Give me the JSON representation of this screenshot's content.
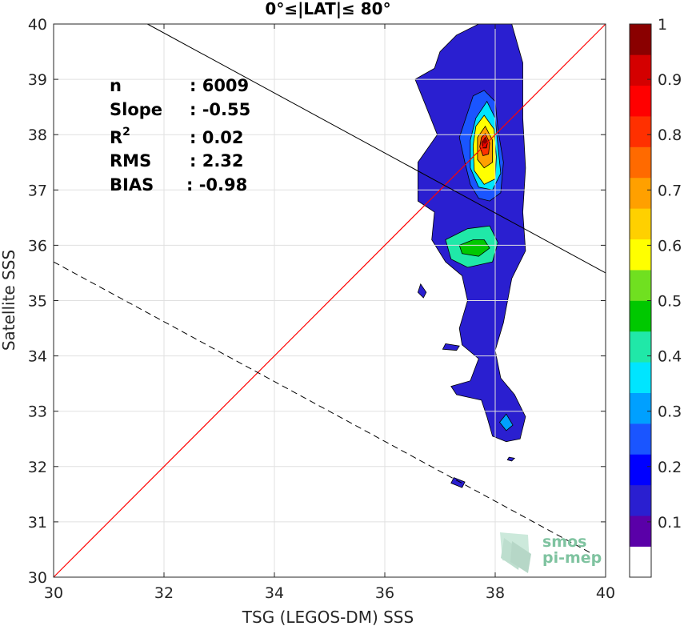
{
  "chart_data": {
    "type": "heatmap",
    "title": "0°≤|LAT|≤ 80°",
    "xlabel": "TSG (LEGOS-DM) SSS",
    "ylabel": "Satellite SSS",
    "xlim": [
      30,
      40
    ],
    "ylim": [
      30,
      40
    ],
    "xticks": [
      "30",
      "32",
      "34",
      "36",
      "38",
      "40"
    ],
    "yticks": [
      "30",
      "31",
      "32",
      "33",
      "34",
      "35",
      "36",
      "37",
      "38",
      "39",
      "40"
    ],
    "grid": true,
    "stats": [
      {
        "label": "n",
        "value": ": 6009"
      },
      {
        "label": "Slope",
        "value": ": -0.55"
      },
      {
        "label": "R",
        "label_sup": "2",
        "value": ": 0.02"
      },
      {
        "label": "RMS",
        "value": ": 2.32"
      },
      {
        "label": "BIAS",
        "value": ": -0.98"
      }
    ],
    "lines": {
      "identity": {
        "slope": 1,
        "intercept": 0,
        "color": "#ff0000",
        "style": "solid"
      },
      "fit": {
        "x": [
          31.7,
          40.0
        ],
        "y": [
          40.0,
          35.5
        ],
        "color": "#000000",
        "style": "solid"
      },
      "offset": {
        "x": [
          30.0,
          39.8
        ],
        "y": [
          35.7,
          30.4
        ],
        "color": "#000000",
        "style": "dashed"
      }
    },
    "density_peak": {
      "x": 37.82,
      "y": 37.88
    },
    "colorbar": {
      "range": [
        0,
        1
      ],
      "ticks": [
        "0.1",
        "0.2",
        "0.3",
        "0.4",
        "0.5",
        "0.6",
        "0.7",
        "0.8",
        "0.9",
        "1"
      ],
      "colors": [
        "#ffffff",
        "#5a00a8",
        "#2a1fd0",
        "#0000ff",
        "#1a55ff",
        "#00a0ff",
        "#00e5ff",
        "#20e8a8",
        "#00c800",
        "#70e020",
        "#ffff00",
        "#ffd000",
        "#ffa000",
        "#ff6a00",
        "#ff3000",
        "#ff0000",
        "#d40000",
        "#8a0000"
      ]
    },
    "contours": [
      {
        "level": 0.05,
        "color": "#2a1fd0",
        "points": [
          [
            37.3,
            39.8
          ],
          [
            37.7,
            40.0
          ],
          [
            38.3,
            40.0
          ],
          [
            38.5,
            39.3
          ],
          [
            38.5,
            38.3
          ],
          [
            38.55,
            37.4
          ],
          [
            38.5,
            36.6
          ],
          [
            38.55,
            35.9
          ],
          [
            38.3,
            35.4
          ],
          [
            38.15,
            34.6
          ],
          [
            38.0,
            34.1
          ],
          [
            38.1,
            33.6
          ],
          [
            38.35,
            33.3
          ],
          [
            38.55,
            32.9
          ],
          [
            38.45,
            32.5
          ],
          [
            38.2,
            32.45
          ],
          [
            37.95,
            32.55
          ],
          [
            37.85,
            32.9
          ],
          [
            37.75,
            33.2
          ],
          [
            37.3,
            33.3
          ],
          [
            37.2,
            33.45
          ],
          [
            37.55,
            33.55
          ],
          [
            37.7,
            33.95
          ],
          [
            37.4,
            34.2
          ],
          [
            37.35,
            34.5
          ],
          [
            37.5,
            35.0
          ],
          [
            37.4,
            35.45
          ],
          [
            37.1,
            35.7
          ],
          [
            36.85,
            36.1
          ],
          [
            36.9,
            36.6
          ],
          [
            36.6,
            36.8
          ],
          [
            36.6,
            37.5
          ],
          [
            36.95,
            38.0
          ],
          [
            36.75,
            38.5
          ],
          [
            36.55,
            39.0
          ],
          [
            36.9,
            39.2
          ],
          [
            37.0,
            39.5
          ],
          [
            37.3,
            39.8
          ]
        ]
      },
      {
        "level": 0.15,
        "color": "#1a55ff",
        "points": [
          [
            37.8,
            38.8
          ],
          [
            38.0,
            38.6
          ],
          [
            38.05,
            38.1
          ],
          [
            38.15,
            37.5
          ],
          [
            38.1,
            36.95
          ],
          [
            37.9,
            36.8
          ],
          [
            37.7,
            36.85
          ],
          [
            37.55,
            37.1
          ],
          [
            37.45,
            37.5
          ],
          [
            37.35,
            37.95
          ],
          [
            37.5,
            38.4
          ],
          [
            37.6,
            38.7
          ],
          [
            37.8,
            38.8
          ]
        ]
      },
      {
        "level": 0.25,
        "color": "#00e5ff",
        "points": [
          [
            37.85,
            38.6
          ],
          [
            38.0,
            38.3
          ],
          [
            38.05,
            37.8
          ],
          [
            38.1,
            37.3
          ],
          [
            37.95,
            37.0
          ],
          [
            37.7,
            37.05
          ],
          [
            37.55,
            37.4
          ],
          [
            37.55,
            37.9
          ],
          [
            37.65,
            38.3
          ],
          [
            37.85,
            38.6
          ]
        ]
      },
      {
        "level": 0.3,
        "color": "#20e8a8",
        "points": [
          [
            37.9,
            36.35
          ],
          [
            38.05,
            36.05
          ],
          [
            37.95,
            35.7
          ],
          [
            37.5,
            35.6
          ],
          [
            37.2,
            35.75
          ],
          [
            37.1,
            36.1
          ],
          [
            37.5,
            36.3
          ],
          [
            37.9,
            36.35
          ]
        ]
      },
      {
        "level": 0.35,
        "color": "#00c800",
        "points": [
          [
            37.8,
            36.1
          ],
          [
            37.9,
            35.95
          ],
          [
            37.7,
            35.8
          ],
          [
            37.4,
            35.85
          ],
          [
            37.35,
            36.0
          ],
          [
            37.6,
            36.1
          ],
          [
            37.8,
            36.1
          ]
        ]
      },
      {
        "level": 0.55,
        "color": "#ffff00",
        "points": [
          [
            37.8,
            38.35
          ],
          [
            37.98,
            38.1
          ],
          [
            38.02,
            37.6
          ],
          [
            38.0,
            37.2
          ],
          [
            37.8,
            37.1
          ],
          [
            37.62,
            37.35
          ],
          [
            37.6,
            37.8
          ],
          [
            37.65,
            38.15
          ],
          [
            37.8,
            38.35
          ]
        ]
      },
      {
        "level": 0.7,
        "color": "#ffa000",
        "points": [
          [
            37.82,
            38.15
          ],
          [
            37.95,
            37.9
          ],
          [
            37.95,
            37.5
          ],
          [
            37.8,
            37.4
          ],
          [
            37.68,
            37.55
          ],
          [
            37.68,
            37.95
          ],
          [
            37.82,
            38.15
          ]
        ]
      },
      {
        "level": 0.85,
        "color": "#ff3000",
        "points": [
          [
            37.82,
            38.02
          ],
          [
            37.9,
            37.85
          ],
          [
            37.88,
            37.65
          ],
          [
            37.78,
            37.62
          ],
          [
            37.72,
            37.78
          ],
          [
            37.75,
            37.95
          ],
          [
            37.82,
            38.02
          ]
        ]
      },
      {
        "level": 0.95,
        "color": "#d40000",
        "points": [
          [
            37.82,
            37.95
          ],
          [
            37.86,
            37.85
          ],
          [
            37.84,
            37.76
          ],
          [
            37.78,
            37.76
          ],
          [
            37.76,
            37.86
          ],
          [
            37.82,
            37.95
          ]
        ]
      },
      {
        "level": 0.05,
        "color": "#2a1fd0",
        "points": [
          [
            36.65,
            35.3
          ],
          [
            36.75,
            35.15
          ],
          [
            36.7,
            35.05
          ],
          [
            36.6,
            35.15
          ],
          [
            36.65,
            35.3
          ]
        ]
      },
      {
        "level": 0.05,
        "color": "#2a1fd0",
        "points": [
          [
            37.1,
            34.22
          ],
          [
            37.35,
            34.18
          ],
          [
            37.3,
            34.1
          ],
          [
            37.05,
            34.12
          ],
          [
            37.1,
            34.22
          ]
        ]
      },
      {
        "level": 0.05,
        "color": "#2a1fd0",
        "points": [
          [
            37.25,
            31.8
          ],
          [
            37.45,
            31.72
          ],
          [
            37.4,
            31.62
          ],
          [
            37.2,
            31.7
          ],
          [
            37.25,
            31.8
          ]
        ]
      },
      {
        "level": 0.05,
        "color": "#2a1fd0",
        "points": [
          [
            38.25,
            32.17
          ],
          [
            38.35,
            32.15
          ],
          [
            38.3,
            32.1
          ],
          [
            38.22,
            32.12
          ],
          [
            38.25,
            32.17
          ]
        ]
      },
      {
        "level": 0.2,
        "color": "#00a0ff",
        "points": [
          [
            38.2,
            32.95
          ],
          [
            38.32,
            32.75
          ],
          [
            38.2,
            32.65
          ],
          [
            38.08,
            32.8
          ],
          [
            38.2,
            32.95
          ]
        ]
      }
    ]
  },
  "logo": {
    "line1": "smos",
    "line2": "pi-mep"
  }
}
